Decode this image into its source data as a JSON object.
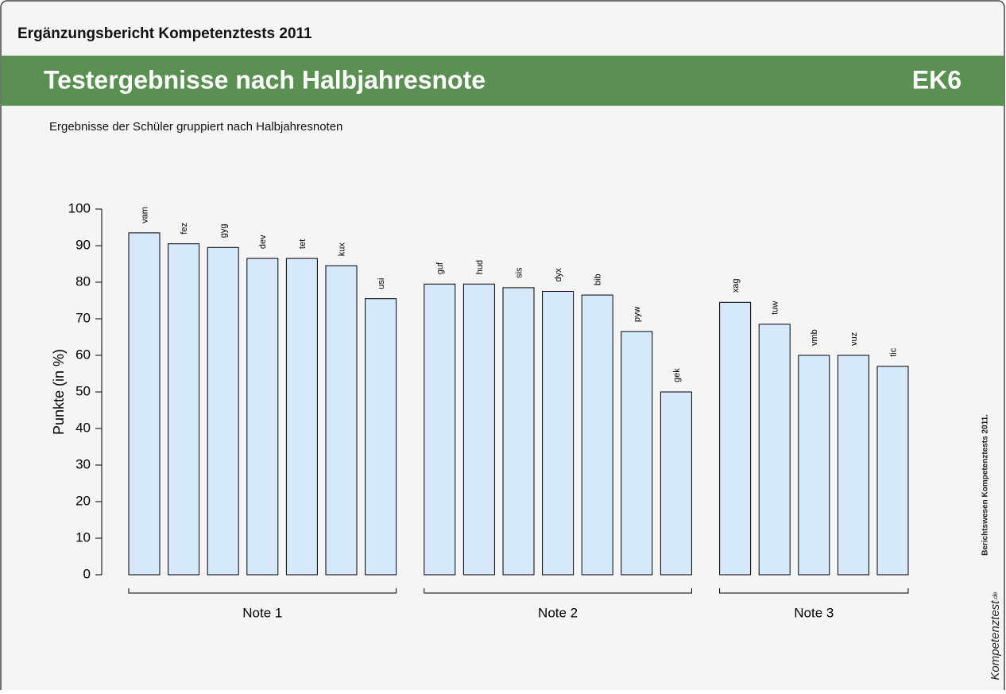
{
  "header": {
    "report": "Ergänzungsbericht Kompetenztests 2011",
    "title": "Testergebnisse nach Halbjahresnote",
    "code": "EK6",
    "subtitle": "Ergebnisse der Schüler gruppiert nach Halbjahresnoten"
  },
  "side": {
    "note": "Berichtswesen Kompetenztests 2011.",
    "logo": "Kompetenztest",
    "logo_suffix": ".de"
  },
  "chart_data": {
    "type": "bar",
    "ylabel": "Punkte (in %)",
    "color": "#d6e9fb",
    "ylim": [
      0,
      100
    ],
    "yticks": [
      0,
      10,
      20,
      30,
      40,
      50,
      60,
      70,
      80,
      90,
      100
    ],
    "groups": [
      {
        "label": "Note 1",
        "categories": [
          "vam",
          "fez",
          "gyg",
          "dev",
          "tet",
          "kux",
          "usi"
        ],
        "values": [
          93.5,
          90.5,
          89.5,
          86.5,
          86.5,
          84.5,
          75.5
        ]
      },
      {
        "label": "Note 2",
        "categories": [
          "guf",
          "hud",
          "sis",
          "dyx",
          "bib",
          "pyw",
          "gek"
        ],
        "values": [
          79.5,
          79.5,
          78.5,
          77.5,
          76.5,
          66.5,
          50
        ]
      },
      {
        "label": "Note 3",
        "categories": [
          "xag",
          "tuw",
          "vmb",
          "vuz",
          "tic"
        ],
        "values": [
          74.5,
          68.5,
          60,
          60,
          57
        ]
      }
    ]
  }
}
